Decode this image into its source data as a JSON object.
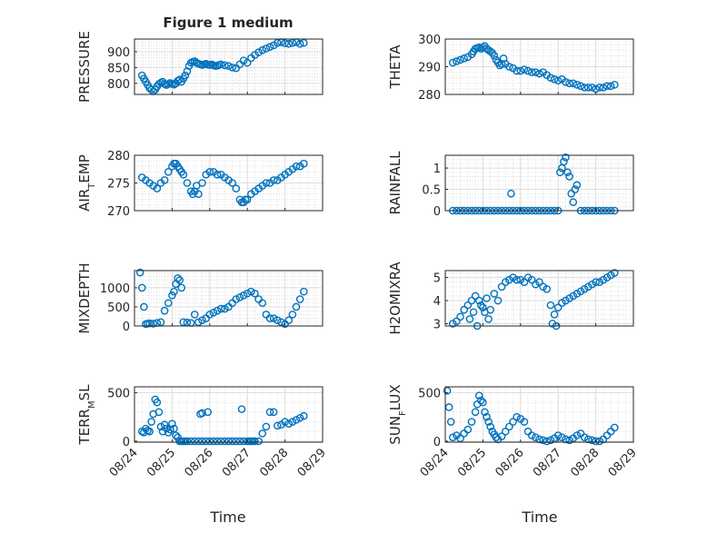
{
  "figure": {
    "title": "Figure 1 medium",
    "xlabel": "Time"
  },
  "chart_data": [
    {
      "type": "scatter",
      "ylabel": "PRESSURE",
      "title": "Figure 1 medium",
      "xticks": [
        "08/24",
        "08/25",
        "08/26",
        "08/27",
        "08/28",
        "08/29"
      ],
      "ylim": [
        765,
        940
      ],
      "yticks": [
        800,
        850,
        900
      ],
      "ytick_labels": [
        "800",
        "850",
        "900"
      ],
      "grid": true,
      "color": "#0072bd",
      "x": [
        0.2,
        0.25,
        0.3,
        0.35,
        0.4,
        0.45,
        0.5,
        0.55,
        0.6,
        0.65,
        0.7,
        0.75,
        0.8,
        0.85,
        0.9,
        0.95,
        1.0,
        1.05,
        1.1,
        1.15,
        1.2,
        1.25,
        1.3,
        1.35,
        1.4,
        1.45,
        1.5,
        1.55,
        1.6,
        1.65,
        1.7,
        1.75,
        1.8,
        1.85,
        1.9,
        1.95,
        2.0,
        2.05,
        2.1,
        2.15,
        2.2,
        2.25,
        2.3,
        2.4,
        2.5,
        2.6,
        2.7,
        2.8,
        2.9,
        3.0,
        3.1,
        3.2,
        3.3,
        3.4,
        3.5,
        3.6,
        3.7,
        3.8,
        3.9,
        4.0,
        4.1,
        4.2,
        4.3,
        4.4,
        4.5
      ],
      "y": [
        825,
        815,
        805,
        795,
        785,
        780,
        775,
        780,
        790,
        798,
        802,
        805,
        798,
        795,
        798,
        801,
        798,
        796,
        800,
        808,
        812,
        805,
        815,
        825,
        838,
        855,
        865,
        868,
        870,
        865,
        862,
        860,
        858,
        860,
        862,
        859,
        858,
        860,
        857,
        855,
        856,
        858,
        860,
        857,
        855,
        850,
        848,
        860,
        872,
        865,
        880,
        890,
        898,
        905,
        910,
        915,
        920,
        928,
        930,
        927,
        925,
        928,
        930,
        925,
        928
      ]
    },
    {
      "type": "scatter",
      "ylabel": "THETA",
      "xticks": [
        "08/24",
        "08/25",
        "08/26",
        "08/27",
        "08/28",
        "08/29"
      ],
      "ylim": [
        280,
        300
      ],
      "yticks": [
        280,
        290,
        300
      ],
      "ytick_labels": [
        "280",
        "290",
        "300"
      ],
      "grid": true,
      "color": "#0072bd",
      "x": [
        0.2,
        0.3,
        0.4,
        0.5,
        0.6,
        0.7,
        0.75,
        0.8,
        0.85,
        0.9,
        0.95,
        1.0,
        1.05,
        1.1,
        1.15,
        1.2,
        1.25,
        1.3,
        1.35,
        1.4,
        1.45,
        1.5,
        1.55,
        1.6,
        1.7,
        1.8,
        1.9,
        2.0,
        2.1,
        2.2,
        2.3,
        2.4,
        2.5,
        2.6,
        2.7,
        2.8,
        2.9,
        3.0,
        3.1,
        3.2,
        3.3,
        3.4,
        3.5,
        3.6,
        3.7,
        3.8,
        3.9,
        4.0,
        4.1,
        4.2,
        4.3,
        4.4,
        4.5
      ],
      "y": [
        291.5,
        292,
        292.5,
        293,
        293.5,
        294.5,
        295.5,
        296.5,
        296.8,
        297,
        296.5,
        297,
        297.5,
        296.5,
        296,
        295.5,
        295,
        294,
        292.5,
        291.5,
        290.5,
        291,
        293,
        291,
        290,
        289.5,
        288.5,
        288.5,
        289,
        288.5,
        288,
        288,
        287.5,
        288,
        287,
        286,
        285.5,
        285,
        285.5,
        284.5,
        284,
        284,
        283.5,
        283,
        282.5,
        282.5,
        282.5,
        282,
        282.5,
        282.5,
        283,
        283,
        283.5
      ]
    },
    {
      "type": "scatter",
      "ylabel": "AIR_TEMP",
      "xticks": [
        "08/24",
        "08/25",
        "08/26",
        "08/27",
        "08/28",
        "08/29"
      ],
      "ylim": [
        270,
        280
      ],
      "yticks": [
        270,
        275,
        280
      ],
      "ytick_labels": [
        "270",
        "275",
        "280"
      ],
      "grid": true,
      "color": "#0072bd",
      "x": [
        0.2,
        0.3,
        0.4,
        0.5,
        0.6,
        0.7,
        0.8,
        0.9,
        1.0,
        1.05,
        1.1,
        1.15,
        1.2,
        1.25,
        1.3,
        1.4,
        1.5,
        1.55,
        1.6,
        1.65,
        1.7,
        1.8,
        1.9,
        2.0,
        2.1,
        2.2,
        2.3,
        2.4,
        2.5,
        2.6,
        2.7,
        2.8,
        2.85,
        2.9,
        2.95,
        3.0,
        3.1,
        3.2,
        3.3,
        3.4,
        3.5,
        3.6,
        3.7,
        3.8,
        3.9,
        4.0,
        4.1,
        4.2,
        4.3,
        4.4,
        4.5
      ],
      "y": [
        276,
        275.5,
        275,
        274.5,
        274,
        275,
        275.5,
        277,
        278,
        278.5,
        278.5,
        278,
        277.5,
        277,
        276.5,
        275,
        273.5,
        273,
        273.5,
        274.5,
        273,
        275,
        276.5,
        277,
        277,
        276.5,
        276.5,
        276,
        275.5,
        275,
        274,
        272,
        271.5,
        271.5,
        272,
        272,
        273,
        273.5,
        274,
        274.5,
        275,
        275,
        275.5,
        275.5,
        276,
        276.5,
        277,
        277.5,
        278,
        278,
        278.5
      ]
    },
    {
      "type": "scatter",
      "ylabel": "RAINFALL",
      "xticks": [
        "08/24",
        "08/25",
        "08/26",
        "08/27",
        "08/28",
        "08/29"
      ],
      "ylim": [
        0,
        1.3
      ],
      "yticks": [
        0,
        0.5,
        1
      ],
      "ytick_labels": [
        "0",
        "0.5",
        "1"
      ],
      "grid": true,
      "color": "#0072bd",
      "x": [
        0.2,
        0.3,
        0.4,
        0.5,
        0.6,
        0.7,
        0.8,
        0.9,
        1.0,
        1.1,
        1.2,
        1.3,
        1.4,
        1.5,
        1.6,
        1.7,
        1.8,
        1.9,
        2.0,
        2.1,
        2.2,
        2.3,
        2.4,
        2.5,
        2.6,
        2.7,
        2.8,
        2.9,
        3.0,
        3.05,
        3.1,
        3.15,
        3.2,
        3.25,
        3.3,
        3.35,
        3.4,
        3.45,
        3.5,
        3.6,
        3.7,
        3.8,
        3.9,
        4.0,
        4.1,
        4.2,
        4.3,
        4.4,
        4.5,
        1.75
      ],
      "y": [
        0,
        0,
        0,
        0,
        0,
        0,
        0,
        0,
        0,
        0,
        0,
        0,
        0,
        0,
        0,
        0,
        0,
        0,
        0,
        0,
        0,
        0,
        0,
        0,
        0,
        0,
        0,
        0,
        0,
        0.9,
        1.0,
        1.15,
        1.25,
        0.9,
        0.8,
        0.4,
        0.2,
        0.5,
        0.6,
        0,
        0,
        0,
        0,
        0,
        0,
        0,
        0,
        0,
        0,
        0.4
      ]
    },
    {
      "type": "scatter",
      "ylabel": "MIXDEPTH",
      "xticks": [
        "08/24",
        "08/25",
        "08/26",
        "08/27",
        "08/28",
        "08/29"
      ],
      "ylim": [
        0,
        1450
      ],
      "yticks": [
        0,
        500,
        1000
      ],
      "ytick_labels": [
        "0",
        "500",
        "1000"
      ],
      "grid": true,
      "color": "#0072bd",
      "x": [
        0.15,
        0.2,
        0.25,
        0.3,
        0.35,
        0.4,
        0.5,
        0.6,
        0.7,
        0.8,
        0.9,
        1.0,
        1.05,
        1.1,
        1.15,
        1.2,
        1.25,
        1.3,
        1.4,
        1.5,
        1.6,
        1.7,
        1.8,
        1.9,
        2.0,
        2.1,
        2.2,
        2.3,
        2.4,
        2.5,
        2.6,
        2.7,
        2.8,
        2.9,
        3.0,
        3.1,
        3.2,
        3.3,
        3.4,
        3.5,
        3.6,
        3.7,
        3.8,
        3.9,
        4.0,
        4.1,
        4.2,
        4.3,
        4.4,
        4.5
      ],
      "y": [
        1400,
        1000,
        500,
        50,
        60,
        70,
        60,
        80,
        100,
        400,
        600,
        800,
        900,
        1100,
        1250,
        1200,
        1000,
        100,
        90,
        80,
        300,
        100,
        150,
        200,
        300,
        350,
        400,
        450,
        450,
        500,
        600,
        700,
        750,
        800,
        850,
        900,
        850,
        700,
        600,
        300,
        200,
        200,
        150,
        100,
        50,
        150,
        300,
        500,
        700,
        900
      ]
    },
    {
      "type": "scatter",
      "ylabel": "H2OMIXRA",
      "xticks": [
        "08/24",
        "08/25",
        "08/26",
        "08/27",
        "08/28",
        "08/29"
      ],
      "ylim": [
        2.9,
        5.3
      ],
      "yticks": [
        3,
        4,
        5
      ],
      "ytick_labels": [
        "3",
        "4",
        "5"
      ],
      "grid": true,
      "color": "#0072bd",
      "x": [
        0.2,
        0.3,
        0.4,
        0.5,
        0.6,
        0.65,
        0.7,
        0.75,
        0.8,
        0.85,
        0.9,
        0.95,
        1.0,
        1.05,
        1.1,
        1.15,
        1.2,
        1.3,
        1.4,
        1.5,
        1.6,
        1.7,
        1.8,
        1.9,
        2.0,
        2.1,
        2.2,
        2.3,
        2.4,
        2.5,
        2.6,
        2.7,
        2.8,
        2.85,
        2.9,
        2.95,
        3.0,
        3.1,
        3.2,
        3.3,
        3.4,
        3.5,
        3.6,
        3.7,
        3.8,
        3.9,
        4.0,
        4.1,
        4.2,
        4.3,
        4.4,
        4.5
      ],
      "y": [
        3.0,
        3.1,
        3.3,
        3.6,
        3.8,
        3.2,
        4.0,
        3.5,
        4.2,
        2.9,
        4.0,
        3.8,
        3.7,
        3.5,
        4.1,
        3.2,
        3.6,
        4.3,
        4.0,
        4.6,
        4.8,
        4.9,
        5.0,
        4.9,
        4.9,
        4.8,
        5.0,
        4.9,
        4.7,
        4.8,
        4.6,
        4.5,
        3.8,
        3.0,
        3.4,
        2.9,
        3.7,
        3.9,
        4.0,
        4.1,
        4.2,
        4.3,
        4.4,
        4.5,
        4.6,
        4.7,
        4.8,
        4.8,
        4.9,
        5.0,
        5.1,
        5.2
      ]
    },
    {
      "type": "scatter",
      "ylabel": "TERR_MSL",
      "xticks": [
        "08/24",
        "08/25",
        "08/26",
        "08/27",
        "08/28",
        "08/29"
      ],
      "ylim": [
        -10,
        560
      ],
      "yticks": [
        0,
        500
      ],
      "ytick_labels": [
        "0",
        "500"
      ],
      "grid": true,
      "color": "#0072bd",
      "x": [
        0.2,
        0.25,
        0.3,
        0.35,
        0.4,
        0.45,
        0.5,
        0.55,
        0.6,
        0.65,
        0.7,
        0.75,
        0.8,
        0.85,
        0.9,
        0.95,
        1.0,
        1.05,
        1.1,
        1.15,
        1.2,
        1.25,
        1.3,
        1.35,
        1.4,
        1.5,
        1.6,
        1.7,
        1.8,
        1.9,
        2.0,
        2.1,
        2.2,
        2.3,
        2.4,
        2.5,
        2.6,
        2.7,
        2.8,
        2.9,
        3.0,
        3.05,
        3.1,
        3.15,
        3.2,
        3.3,
        3.4,
        3.5,
        3.6,
        3.7,
        3.8,
        3.9,
        4.0,
        4.1,
        4.2,
        4.3,
        4.4,
        4.5,
        1.75,
        1.8,
        1.95,
        2.85
      ],
      "y": [
        100,
        90,
        130,
        110,
        100,
        200,
        280,
        430,
        400,
        300,
        150,
        100,
        170,
        130,
        90,
        120,
        180,
        130,
        60,
        40,
        0,
        0,
        0,
        0,
        0,
        0,
        0,
        0,
        0,
        0,
        0,
        0,
        0,
        0,
        0,
        0,
        0,
        0,
        0,
        0,
        0,
        0,
        0,
        0,
        0,
        0,
        80,
        150,
        300,
        300,
        160,
        170,
        200,
        180,
        200,
        220,
        240,
        260,
        280,
        290,
        300,
        330
      ]
    },
    {
      "type": "scatter",
      "ylabel": "SUN_FLUX",
      "xticks": [
        "08/24",
        "08/25",
        "08/26",
        "08/27",
        "08/28",
        "08/29"
      ],
      "ylim": [
        -10,
        560
      ],
      "yticks": [
        0,
        500
      ],
      "ytick_labels": [
        "0",
        "500"
      ],
      "grid": true,
      "color": "#0072bd",
      "x": [
        0.05,
        0.1,
        0.15,
        0.2,
        0.3,
        0.4,
        0.5,
        0.6,
        0.7,
        0.8,
        0.85,
        0.9,
        0.95,
        1.0,
        1.05,
        1.1,
        1.15,
        1.2,
        1.25,
        1.3,
        1.35,
        1.4,
        1.5,
        1.6,
        1.7,
        1.8,
        1.9,
        2.0,
        2.1,
        2.2,
        2.3,
        2.4,
        2.5,
        2.6,
        2.7,
        2.8,
        2.9,
        3.0,
        3.1,
        3.2,
        3.3,
        3.4,
        3.5,
        3.6,
        3.7,
        3.8,
        3.9,
        4.0,
        4.1,
        4.2,
        4.3,
        4.4,
        4.5
      ],
      "y": [
        520,
        350,
        200,
        40,
        60,
        30,
        80,
        120,
        200,
        300,
        380,
        470,
        420,
        400,
        300,
        250,
        200,
        150,
        100,
        70,
        40,
        20,
        50,
        100,
        150,
        200,
        250,
        230,
        200,
        100,
        60,
        40,
        20,
        10,
        0,
        10,
        30,
        60,
        40,
        20,
        10,
        30,
        60,
        80,
        40,
        20,
        10,
        0,
        0,
        20,
        60,
        100,
        140
      ]
    }
  ]
}
